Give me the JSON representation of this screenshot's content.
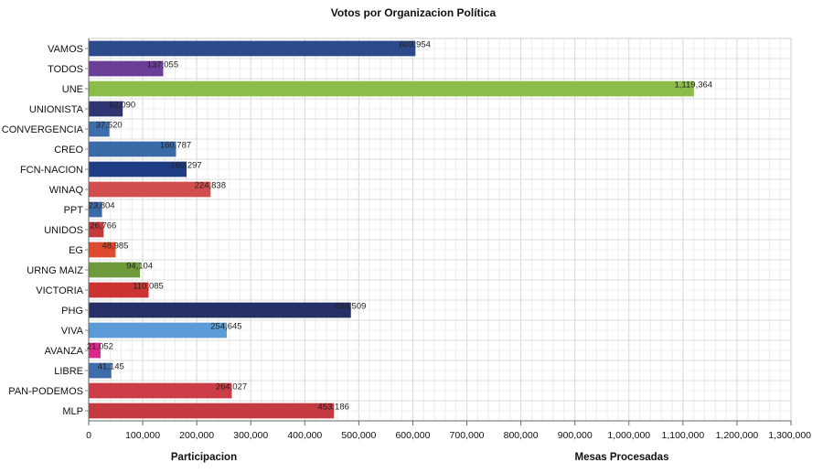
{
  "chart_data": {
    "type": "bar",
    "orientation": "horizontal",
    "title": "Votos por Organizacion Política",
    "categories": [
      "VAMOS",
      "TODOS",
      "UNE",
      "UNIONISTA",
      "CONVERGENCIA",
      "CREO",
      "FCN-NACION",
      "WINAQ",
      "PPT",
      "UNIDOS",
      "EG",
      "URNG MAIZ",
      "VICTORIA",
      "PHG",
      "VIVA",
      "AVANZA",
      "LIBRE",
      "PAN-PODEMOS",
      "MLP"
    ],
    "values": [
      603954,
      137055,
      1119364,
      62090,
      37520,
      160787,
      180297,
      224838,
      23804,
      26766,
      48985,
      94104,
      110085,
      484509,
      254645,
      21052,
      41145,
      264027,
      453186
    ],
    "value_labels": [
      "603,954",
      "137,055",
      "1,119,364",
      "62,090",
      "37,520",
      "160,787",
      "180,297",
      "224,838",
      "23,804",
      "26,766",
      "48,985",
      "94,104",
      "110,085",
      "484,509",
      "254,645",
      "21,052",
      "41,145",
      "264,027",
      "453,186"
    ],
    "colors": [
      "#2a4a8c",
      "#6a3d96",
      "#8cbd48",
      "#2e3570",
      "#3d6dab",
      "#3a6aa8",
      "#1d3c84",
      "#d24e4e",
      "#3a6aa8",
      "#c43a3a",
      "#dd4a2e",
      "#6f9a3b",
      "#cc3333",
      "#262f66",
      "#5b9bd8",
      "#e0258a",
      "#3d6dab",
      "#cc3c46",
      "#c43a40"
    ],
    "xlim": [
      0,
      1300000
    ],
    "xticks": [
      0,
      100000,
      200000,
      300000,
      400000,
      500000,
      600000,
      700000,
      800000,
      900000,
      1000000,
      1100000,
      1200000,
      1300000
    ],
    "xtick_labels": [
      "0",
      "100,000",
      "200,000",
      "300,000",
      "400,000",
      "500,000",
      "600,000",
      "700,000",
      "800,000",
      "900,000",
      "1,000,000",
      "1,100,000",
      "1,200,000",
      "1,300,000"
    ],
    "grid": true,
    "footer_labels": [
      "Participacion",
      "Mesas Procesadas"
    ]
  }
}
